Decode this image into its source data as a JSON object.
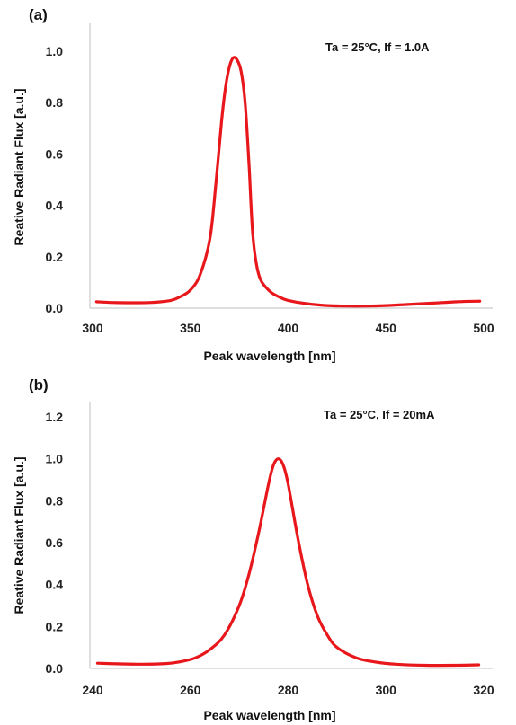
{
  "chart_data": [
    {
      "type": "line",
      "panel_label": "(a)",
      "annotation": "Ta  =  25°C, If  =  1.0A",
      "xlabel": "Peak wavelength [nm]",
      "ylabel": "Reative Radiant Flux [a.u.]",
      "xlim": [
        300,
        500
      ],
      "ylim": [
        0,
        1.0
      ],
      "x_ticks": [
        "300",
        "350",
        "400",
        "450",
        "500"
      ],
      "y_ticks": [
        "0.0",
        "0.2",
        "0.4",
        "0.6",
        "0.8",
        "1.0"
      ],
      "grid": false,
      "series": [
        {
          "color": "#e8171b",
          "points": [
            [
              302,
              0.025
            ],
            [
              310,
              0.022
            ],
            [
              320,
              0.021
            ],
            [
              330,
              0.022
            ],
            [
              340,
              0.03
            ],
            [
              345,
              0.045
            ],
            [
              350,
              0.07
            ],
            [
              355,
              0.13
            ],
            [
              360,
              0.27
            ],
            [
              363,
              0.48
            ],
            [
              366,
              0.73
            ],
            [
              368,
              0.86
            ],
            [
              370,
              0.94
            ],
            [
              372,
              0.975
            ],
            [
              374,
              0.965
            ],
            [
              376,
              0.92
            ],
            [
              378,
              0.8
            ],
            [
              380,
              0.56
            ],
            [
              382,
              0.28
            ],
            [
              385,
              0.13
            ],
            [
              390,
              0.07
            ],
            [
              395,
              0.045
            ],
            [
              400,
              0.03
            ],
            [
              410,
              0.017
            ],
            [
              420,
              0.01
            ],
            [
              430,
              0.008
            ],
            [
              440,
              0.008
            ],
            [
              450,
              0.01
            ],
            [
              460,
              0.014
            ],
            [
              470,
              0.018
            ],
            [
              480,
              0.022
            ],
            [
              490,
              0.026
            ],
            [
              498,
              0.027
            ]
          ]
        }
      ]
    },
    {
      "type": "line",
      "panel_label": "(b)",
      "annotation": "Ta  =  25°C, If  =  20mA",
      "xlabel": "Peak wavelength [nm]",
      "ylabel": "Reative Radiant Flux [a.u.]",
      "xlim": [
        240,
        320
      ],
      "ylim": [
        0,
        1.2
      ],
      "x_ticks": [
        "240",
        "260",
        "280",
        "300",
        "320"
      ],
      "y_ticks": [
        "0.0",
        "0.2",
        "0.4",
        "0.6",
        "0.8",
        "1.0",
        "1.2"
      ],
      "grid": false,
      "series": [
        {
          "color": "#e8171b",
          "points": [
            [
              241,
              0.025
            ],
            [
              245,
              0.022
            ],
            [
              250,
              0.02
            ],
            [
              255,
              0.023
            ],
            [
              258,
              0.032
            ],
            [
              261,
              0.05
            ],
            [
              264,
              0.09
            ],
            [
              267,
              0.16
            ],
            [
              270,
              0.3
            ],
            [
              272,
              0.45
            ],
            [
              274,
              0.65
            ],
            [
              276,
              0.88
            ],
            [
              277,
              0.97
            ],
            [
              278,
              1.0
            ],
            [
              279,
              0.97
            ],
            [
              280,
              0.88
            ],
            [
              282,
              0.62
            ],
            [
              284,
              0.4
            ],
            [
              286,
              0.25
            ],
            [
              288,
              0.16
            ],
            [
              290,
              0.1
            ],
            [
              294,
              0.05
            ],
            [
              298,
              0.03
            ],
            [
              302,
              0.02
            ],
            [
              308,
              0.015
            ],
            [
              314,
              0.015
            ],
            [
              319,
              0.017
            ]
          ]
        }
      ]
    }
  ]
}
